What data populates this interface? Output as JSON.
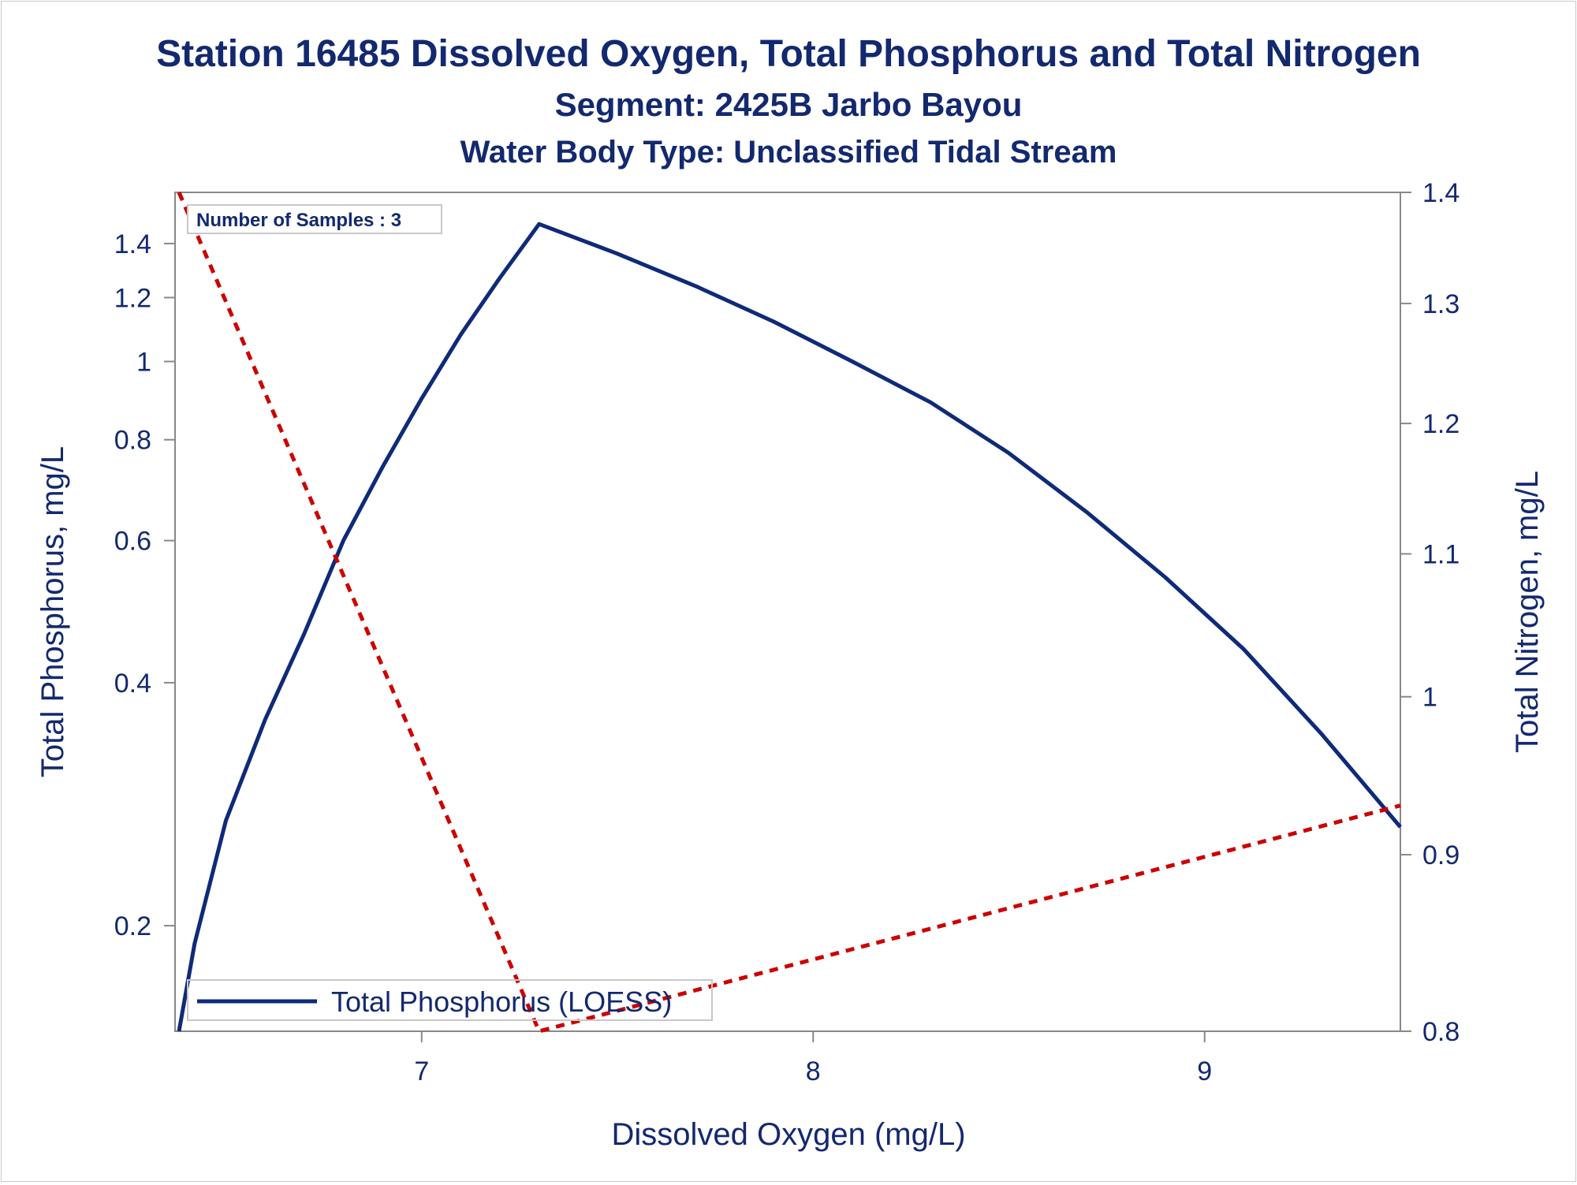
{
  "titles": {
    "line1": "Station 16485  Dissolved Oxygen, Total Phosphorus and Total Nitrogen",
    "line2": "Segment: 2425B  Jarbo Bayou",
    "line3": "Water Body Type: Unclassified Tidal Stream"
  },
  "annotation": "Number of Samples : 3",
  "legend": {
    "label": "Total Phosphorus (LOESS)"
  },
  "colors": {
    "text": "#13296f",
    "phosphorus": "#0f2a78",
    "nitrogen": "#cc0000",
    "axis": "#888888"
  },
  "chart_data": {
    "type": "line",
    "title": "Station 16485  Dissolved Oxygen, Total Phosphorus and Total Nitrogen",
    "xlabel": "Dissolved Oxygen (mg/L)",
    "ylabel_left": "Total Phosphorus, mg/L",
    "ylabel_right": "Total Nitrogen, mg/L",
    "xlim": [
      6.37,
      9.5
    ],
    "xticks": [
      "7",
      "8",
      "9"
    ],
    "xtick_values": [
      7,
      8,
      9
    ],
    "y_left_scale": "log",
    "y_left_lim": [
      0.148,
      1.62
    ],
    "y_left_ticks": [
      "0.2",
      "0.4",
      "0.6",
      "0.8",
      "1",
      "1.2",
      "1.4"
    ],
    "y_left_tick_values": [
      0.2,
      0.4,
      0.6,
      0.8,
      1.0,
      1.2,
      1.4
    ],
    "y_right_scale": "log",
    "y_right_lim": [
      0.8,
      1.4
    ],
    "y_right_ticks": [
      "0.8",
      "0.9",
      "1",
      "1.1",
      "1.2",
      "1.3",
      "1.4"
    ],
    "y_right_tick_values": [
      0.8,
      0.9,
      1.0,
      1.1,
      1.2,
      1.3,
      1.4
    ],
    "series": [
      {
        "name": "Total Phosphorus (LOESS)",
        "axis": "left",
        "style": "solid",
        "x": [
          6.38,
          6.42,
          6.5,
          6.6,
          6.7,
          6.8,
          6.9,
          7.0,
          7.1,
          7.2,
          7.3,
          7.5,
          7.7,
          7.9,
          8.1,
          8.3,
          8.5,
          8.7,
          8.9,
          9.1,
          9.3,
          9.5
        ],
        "y": [
          0.148,
          0.19,
          0.27,
          0.36,
          0.46,
          0.6,
          0.74,
          0.9,
          1.08,
          1.27,
          1.48,
          1.36,
          1.24,
          1.12,
          1.0,
          0.89,
          0.77,
          0.65,
          0.54,
          0.44,
          0.345,
          0.265
        ]
      },
      {
        "axis": "right",
        "style": "dashed",
        "x": [
          6.38,
          7.3,
          9.5
        ],
        "y": [
          1.4,
          0.8,
          0.93
        ]
      }
    ]
  }
}
